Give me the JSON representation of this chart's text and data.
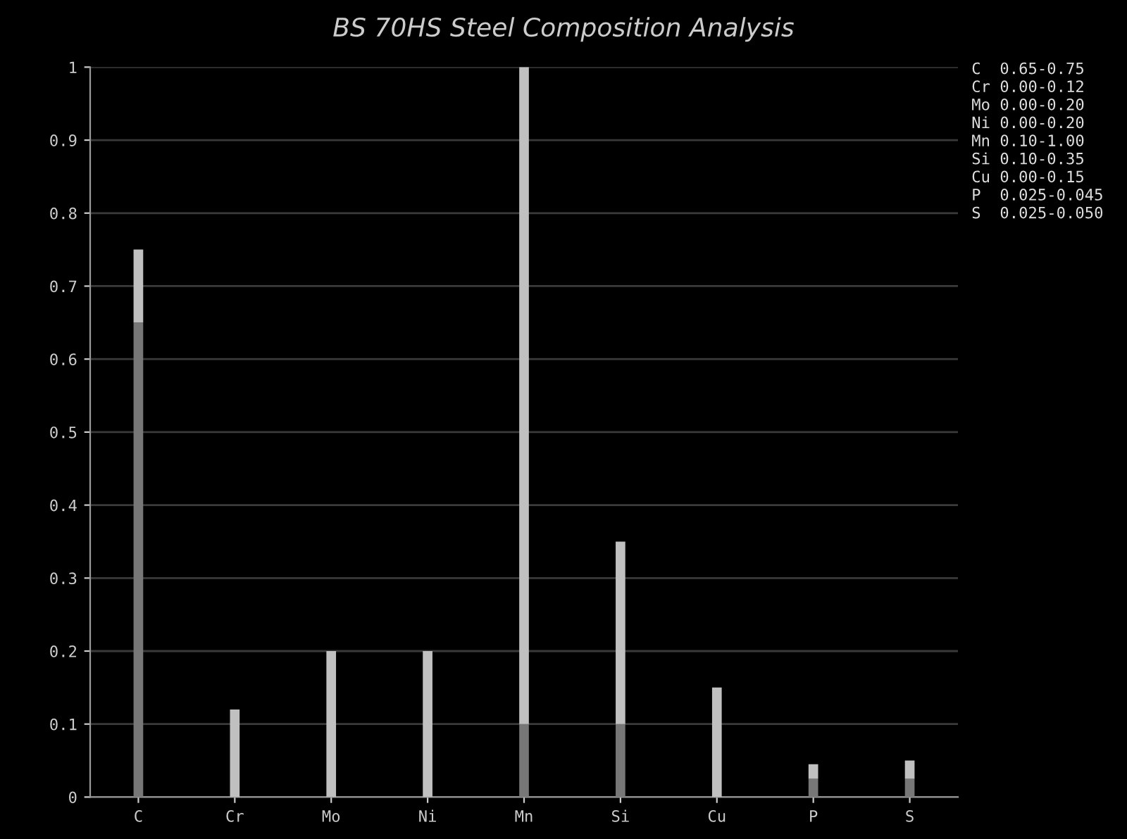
{
  "chart_data": {
    "type": "bar",
    "title": "BS 70HS Steel Composition Analysis",
    "categories": [
      "C",
      "Cr",
      "Mo",
      "Ni",
      "Mn",
      "Si",
      "Cu",
      "P",
      "S"
    ],
    "stacked": true,
    "series": [
      {
        "color": "#777777",
        "values": [
          0.65,
          0,
          0,
          0,
          0.1,
          0.1,
          0,
          0.025,
          0.025
        ]
      },
      {
        "color": "#c0c0c0",
        "values": [
          0.1,
          0.12,
          0.2,
          0.2,
          0.9,
          0.25,
          0.15,
          0.02,
          0.025
        ]
      }
    ],
    "ylim": [
      0,
      1
    ],
    "yticks": [
      0,
      0.1,
      0.2,
      0.3,
      0.4,
      0.5,
      0.6,
      0.7,
      0.8,
      0.9,
      1
    ],
    "grid": "y",
    "annotations": [
      "C  0.65-0.75",
      "Cr 0.00-0.12",
      "Mo 0.00-0.20",
      "Ni 0.00-0.20",
      "Mn 0.10-1.00",
      "Si 0.10-0.35",
      "Cu 0.00-0.15",
      "P  0.025-0.045",
      "S  0.025-0.050"
    ]
  }
}
